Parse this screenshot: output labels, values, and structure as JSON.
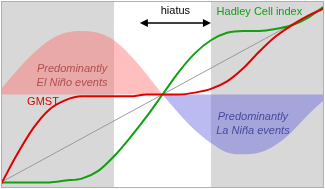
{
  "chart_data": {
    "type": "line",
    "xlim": [
      0,
      100
    ],
    "ylim": [
      0,
      100
    ],
    "grid": false,
    "tick_labels": false,
    "shaded": [
      [
        0,
        35
      ],
      [
        65,
        100
      ]
    ],
    "annotations": [
      {
        "text": "hiatus",
        "x_from": 43,
        "x_to": 65
      }
    ],
    "series": [
      {
        "name": "GMST",
        "color": "#e00000",
        "x": [
          0,
          5,
          10,
          15,
          20,
          25,
          30,
          35,
          40,
          45,
          50,
          55,
          60,
          65,
          70,
          75,
          80,
          85,
          90,
          95,
          100
        ],
        "values": [
          2,
          18,
          32,
          42,
          47,
          49,
          49,
          49,
          49,
          50,
          50,
          50,
          51,
          53,
          57,
          64,
          73,
          81,
          87,
          92,
          96
        ]
      },
      {
        "name": "Hadley Cell index",
        "color": "#10a010",
        "x": [
          0,
          5,
          10,
          15,
          20,
          25,
          30,
          35,
          40,
          45,
          50,
          55,
          60,
          65,
          70,
          75,
          80,
          85,
          90,
          95,
          100
        ],
        "values": [
          3,
          3,
          3,
          3,
          4,
          5,
          9,
          17,
          27,
          38,
          50,
          62,
          72,
          79,
          83,
          84,
          84,
          85,
          87,
          91,
          97
        ]
      },
      {
        "color": "#9a9a9a",
        "x": [
          0,
          100
        ],
        "values": [
          3,
          97
        ]
      },
      {
        "name": "Predominantly\nEl Niño events",
        "type": "area",
        "color": "#ff7070",
        "baseline": 50,
        "x": [
          0,
          5,
          10,
          15,
          20,
          25,
          30,
          35,
          40,
          45,
          50
        ],
        "values": [
          53,
          63,
          72,
          79,
          83,
          84,
          83,
          79,
          71,
          61,
          50
        ]
      },
      {
        "name": "Predominantly\nLa Niña events",
        "type": "area",
        "color": "#6868e0",
        "baseline": 50,
        "x": [
          50,
          55,
          60,
          65,
          70,
          75,
          80,
          85,
          90,
          95,
          100
        ],
        "values": [
          50,
          40,
          31,
          24,
          19,
          18,
          19,
          23,
          30,
          39,
          47
        ]
      }
    ]
  }
}
